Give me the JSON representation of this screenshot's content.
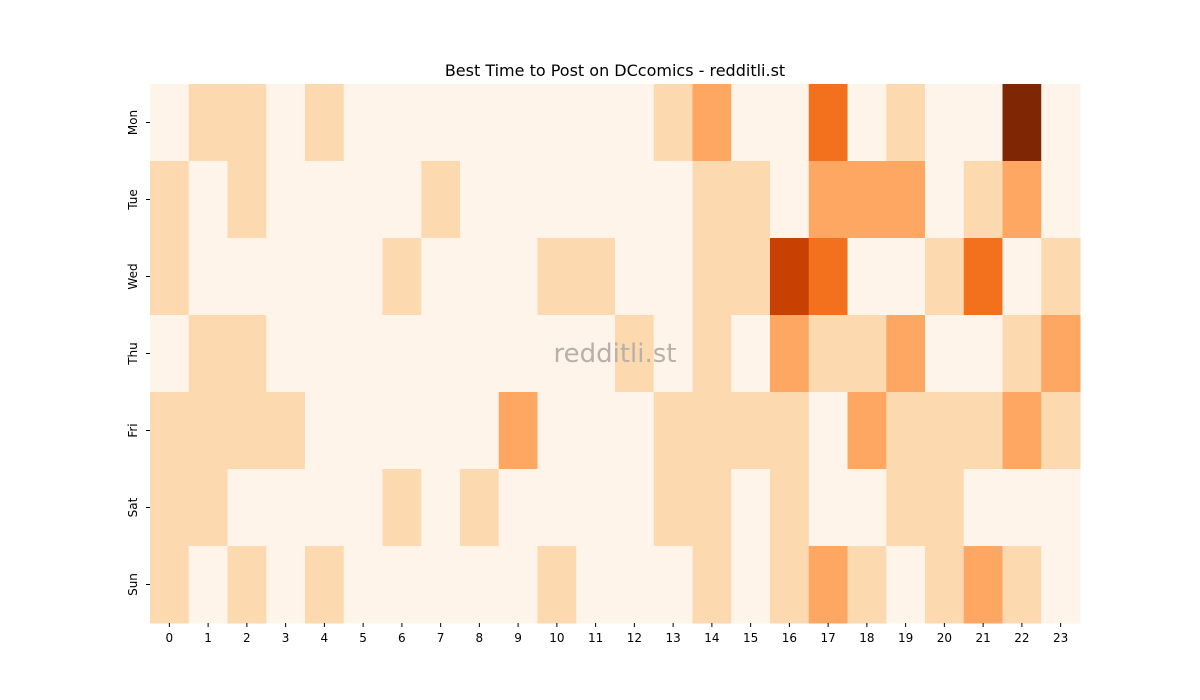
{
  "chart_data": {
    "type": "heatmap",
    "title": "Best Time to Post on DCcomics - redditli.st",
    "watermark": "redditli.st",
    "colormap": "Oranges",
    "x_labels": [
      "0",
      "1",
      "2",
      "3",
      "4",
      "5",
      "6",
      "7",
      "8",
      "9",
      "10",
      "11",
      "12",
      "13",
      "14",
      "15",
      "16",
      "17",
      "18",
      "19",
      "20",
      "21",
      "22",
      "23"
    ],
    "y_labels": [
      "Mon",
      "Tue",
      "Wed",
      "Thu",
      "Fri",
      "Sat",
      "Sun"
    ],
    "level_colors": [
      "#fff4e9",
      "#fdd9b0",
      "#fda762",
      "#f3701c",
      "#c94102",
      "#7f2704"
    ],
    "values": [
      [
        0,
        1,
        1,
        0,
        1,
        0,
        0,
        0,
        0,
        0,
        0,
        0,
        0,
        1,
        2,
        0,
        0,
        3,
        0,
        1,
        0,
        0,
        5,
        0
      ],
      [
        1,
        0,
        1,
        0,
        0,
        0,
        0,
        1,
        0,
        0,
        0,
        0,
        0,
        0,
        1,
        1,
        0,
        2,
        2,
        2,
        0,
        1,
        2,
        0
      ],
      [
        1,
        0,
        0,
        0,
        0,
        0,
        1,
        0,
        0,
        0,
        1,
        1,
        0,
        0,
        1,
        1,
        4,
        3,
        0,
        0,
        1,
        3,
        0,
        1
      ],
      [
        0,
        1,
        1,
        0,
        0,
        0,
        0,
        0,
        0,
        0,
        0,
        0,
        1,
        0,
        1,
        0,
        2,
        1,
        1,
        2,
        0,
        0,
        1,
        2
      ],
      [
        1,
        1,
        1,
        1,
        0,
        0,
        0,
        0,
        0,
        2,
        0,
        0,
        0,
        1,
        1,
        1,
        1,
        0,
        2,
        1,
        1,
        1,
        2,
        1
      ],
      [
        1,
        1,
        0,
        0,
        0,
        0,
        1,
        0,
        1,
        0,
        0,
        0,
        0,
        1,
        1,
        0,
        1,
        0,
        0,
        1,
        1,
        0,
        0,
        0
      ],
      [
        1,
        0,
        1,
        0,
        1,
        0,
        0,
        0,
        0,
        0,
        1,
        0,
        0,
        0,
        1,
        0,
        1,
        2,
        1,
        0,
        1,
        2,
        1,
        0
      ]
    ]
  }
}
